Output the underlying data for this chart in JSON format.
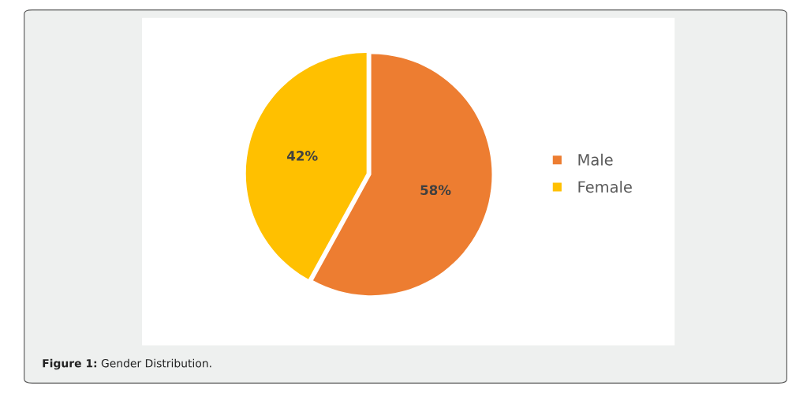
{
  "chart_data": {
    "type": "pie",
    "categories": [
      "Male",
      "Female"
    ],
    "values": [
      58,
      42
    ],
    "colors": [
      "#ed7d31",
      "#ffc000"
    ],
    "value_labels": [
      "58%",
      "42%"
    ],
    "legend": "right",
    "annotations": [
      "Figure 1: Gender Distribution."
    ]
  }
}
